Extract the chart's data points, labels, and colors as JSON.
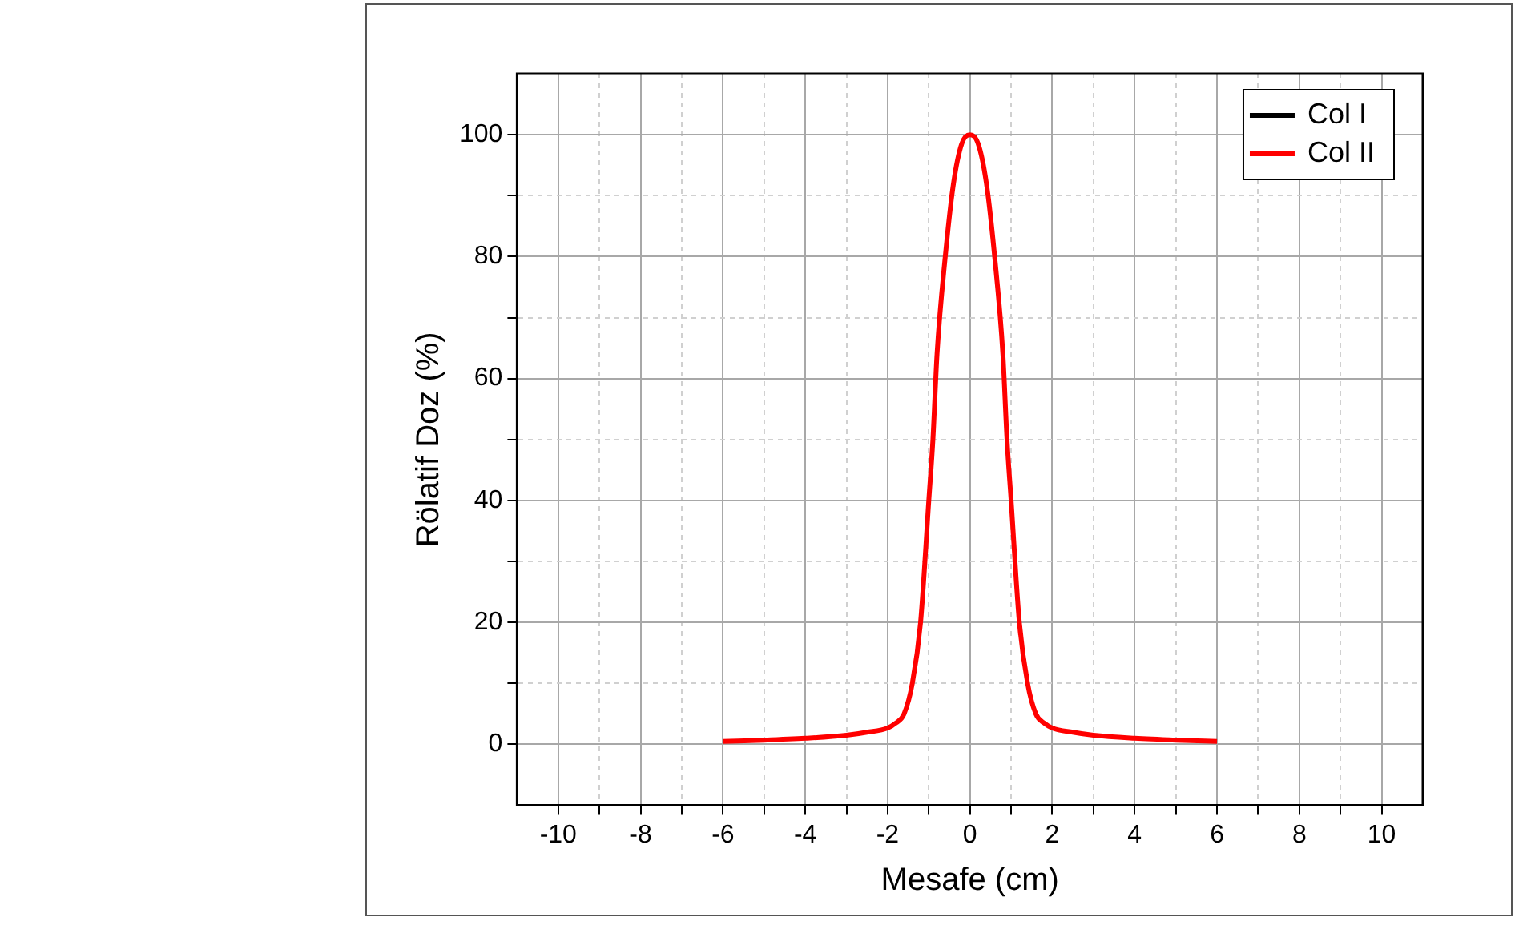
{
  "chart_data": {
    "type": "line",
    "xlabel": "Mesafe (cm)",
    "ylabel": "Rölatif Doz (%)",
    "x": [
      -6,
      -5,
      -4,
      -3,
      -2.5,
      -2,
      -1.8,
      -1.6,
      -1.4,
      -1.2,
      -1,
      -0.9,
      -0.8,
      -0.6,
      -0.4,
      -0.2,
      0,
      0.2,
      0.4,
      0.6,
      0.8,
      0.9,
      1,
      1.2,
      1.4,
      1.6,
      1.8,
      2,
      2.5,
      3,
      4,
      5,
      6
    ],
    "series": [
      {
        "name": "Col I",
        "color": "#000000",
        "values": [
          null,
          null,
          null,
          null,
          null,
          null,
          null,
          null,
          null,
          null,
          null,
          null,
          null,
          null,
          null,
          null,
          null,
          null,
          null,
          null,
          null,
          null,
          null,
          null,
          null,
          null,
          null,
          null,
          null,
          null,
          null,
          null,
          null
        ]
      },
      {
        "name": "Col II",
        "color": "#ff0000",
        "values": [
          0.5,
          0.7,
          1,
          1.5,
          2,
          2.7,
          3.5,
          5,
          10,
          20,
          40,
          50,
          64,
          80,
          92,
          98.5,
          100,
          98.5,
          92,
          80,
          64,
          50,
          40,
          20,
          10,
          5,
          3.5,
          2.7,
          2,
          1.5,
          1,
          0.7,
          0.5
        ]
      }
    ],
    "xlim": [
      -11,
      11
    ],
    "xticks": [
      -10,
      {
        "value": -9,
        "label": null
      },
      -8,
      {
        "value": -7,
        "label": null
      },
      -6,
      {
        "value": -5,
        "label": null
      },
      -4,
      {
        "value": -3,
        "label": null
      },
      -2,
      {
        "value": -1,
        "label": null
      },
      0,
      {
        "value": 1,
        "label": null
      },
      2,
      {
        "value": 3,
        "label": null
      },
      4,
      {
        "value": 5,
        "label": null
      },
      6,
      {
        "value": 7,
        "label": null
      },
      8,
      {
        "value": 9,
        "label": null
      },
      10
    ],
    "ylim": [
      -10,
      110
    ],
    "yticks": [
      0,
      {
        "value": 10,
        "label": null
      },
      20,
      {
        "value": 30,
        "label": null
      },
      40,
      {
        "value": 50,
        "label": null
      },
      60,
      {
        "value": 70,
        "label": null
      },
      80,
      {
        "value": 90,
        "label": null
      },
      100
    ],
    "grid": true,
    "legend": "top right",
    "marker": "none",
    "line_style": "solid"
  }
}
